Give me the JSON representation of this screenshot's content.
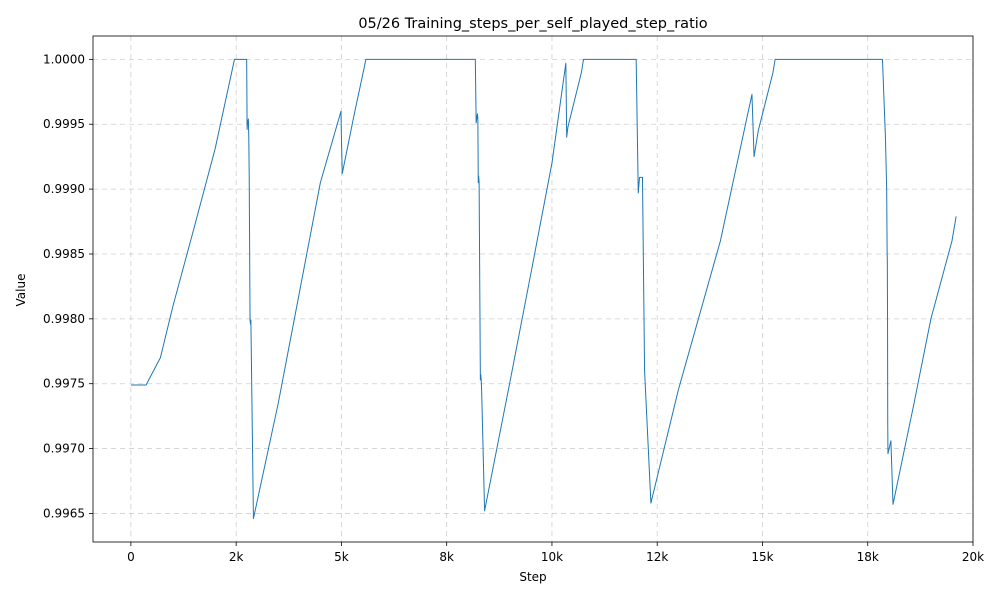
{
  "chart_data": {
    "type": "line",
    "title": "05/26  Training_steps_per_self_played_step_ratio",
    "xlabel": "Step",
    "ylabel": "Value",
    "xlim": [
      -900,
      20000
    ],
    "ylim": [
      0.99628,
      1.00018
    ],
    "grid": true,
    "x_ticks": [
      {
        "value": 0,
        "label": "0"
      },
      {
        "value": 2500,
        "label": "2k"
      },
      {
        "value": 5000,
        "label": "5k"
      },
      {
        "value": 7500,
        "label": "8k"
      },
      {
        "value": 10000,
        "label": "10k"
      },
      {
        "value": 12500,
        "label": "12k"
      },
      {
        "value": 15000,
        "label": "15k"
      },
      {
        "value": 17500,
        "label": "18k"
      },
      {
        "value": 20000,
        "label": "20k"
      }
    ],
    "y_ticks": [
      {
        "value": 0.9965,
        "label": "0.9965"
      },
      {
        "value": 0.997,
        "label": "0.9970"
      },
      {
        "value": 0.9975,
        "label": "0.9975"
      },
      {
        "value": 0.998,
        "label": "0.9980"
      },
      {
        "value": 0.9985,
        "label": "0.9985"
      },
      {
        "value": 0.999,
        "label": "0.9990"
      },
      {
        "value": 0.9995,
        "label": "0.9995"
      },
      {
        "value": 1.0,
        "label": "1.0000"
      }
    ],
    "series": [
      {
        "color": "#1f77b4",
        "x": [
          0,
          330,
          360,
          700,
          1000,
          1500,
          2000,
          2420,
          2460,
          2700,
          2750,
          2760,
          2770,
          2790,
          2800,
          2810,
          2830,
          2840,
          2850,
          2910,
          3500,
          4000,
          4500,
          4990,
          5000,
          5020,
          5300,
          5550,
          5580,
          5620,
          6000,
          7000,
          8000,
          8000,
          8180,
          8200,
          8230,
          8240,
          8250,
          8260,
          8270,
          8300,
          8310,
          8320,
          8330,
          8400,
          9000,
          9500,
          10000,
          10330,
          10350,
          10380,
          10700,
          10750,
          11000,
          12000,
          12000,
          12050,
          12080,
          12150,
          12200,
          12350,
          13000,
          14000,
          14750,
          14800,
          14900,
          15250,
          15300,
          16000,
          17000,
          17850,
          17850,
          17920,
          17950,
          17960,
          17965,
          17970,
          17975,
          17980,
          18050,
          18100,
          18600,
          19000,
          19500,
          19600
        ],
        "y": [
          0.99749,
          0.99749,
          0.99749,
          0.9977,
          0.9981,
          0.9987,
          0.99931,
          0.99994,
          1.0,
          1.0,
          1.0,
          0.99946,
          0.99951,
          0.99954,
          0.9994,
          0.9991,
          0.99799,
          0.99796,
          0.99799,
          0.99646,
          0.99735,
          0.9982,
          0.99905,
          0.9996,
          0.9994,
          0.99912,
          0.99957,
          0.99995,
          1.0,
          1.0,
          1.0,
          1.0,
          1.0,
          1.0,
          1.0,
          0.99951,
          0.99958,
          0.99955,
          0.99905,
          0.9991,
          0.99905,
          0.99753,
          0.99757,
          0.99753,
          0.99745,
          0.99652,
          0.99751,
          0.99835,
          0.9992,
          0.99997,
          0.9994,
          0.99948,
          0.9999,
          1.0,
          1.0,
          1.0,
          1.0,
          0.99897,
          0.99909,
          0.99909,
          0.9976,
          0.99658,
          0.99745,
          0.9986,
          0.99973,
          0.99925,
          0.99945,
          0.9999,
          1.0,
          1.0,
          1.0,
          1.0,
          1.0,
          0.9994,
          0.999,
          0.99852,
          0.99845,
          0.998,
          0.9972,
          0.99696,
          0.99706,
          0.99657,
          0.99735,
          0.998,
          0.9986,
          0.99879
        ]
      }
    ]
  }
}
